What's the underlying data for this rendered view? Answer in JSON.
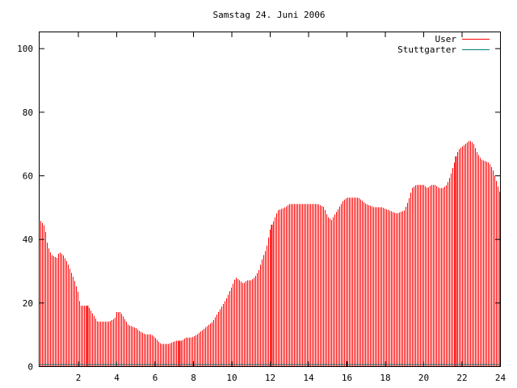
{
  "chart_data": {
    "type": "bar",
    "title": "Samstag 24. Juni 2006",
    "xlabel": "",
    "ylabel": "",
    "xlim": [
      0,
      24
    ],
    "ylim": [
      0,
      105
    ],
    "x_ticks": [
      "2",
      "4",
      "6",
      "8",
      "10",
      "12",
      "14",
      "16",
      "18",
      "20",
      "22",
      "24"
    ],
    "y_ticks": [
      "0",
      "20",
      "40",
      "60",
      "80",
      "100"
    ],
    "grid": false,
    "legend_position": "top-right",
    "series": [
      {
        "name": "User",
        "color": "#ff0000",
        "profile": [
          [
            0.0,
            46
          ],
          [
            0.25,
            44
          ],
          [
            0.4,
            38
          ],
          [
            0.6,
            35
          ],
          [
            0.9,
            34
          ],
          [
            1.0,
            36
          ],
          [
            1.2,
            35
          ],
          [
            1.4,
            33
          ],
          [
            1.6,
            30
          ],
          [
            1.8,
            27
          ],
          [
            2.0,
            23
          ],
          [
            2.1,
            19
          ],
          [
            2.5,
            19
          ],
          [
            2.6,
            18
          ],
          [
            2.8,
            16
          ],
          [
            3.0,
            14
          ],
          [
            3.6,
            14
          ],
          [
            3.9,
            15
          ],
          [
            4.0,
            17
          ],
          [
            4.2,
            17
          ],
          [
            4.4,
            15
          ],
          [
            4.6,
            13
          ],
          [
            5.0,
            12
          ],
          [
            5.2,
            11
          ],
          [
            5.5,
            10
          ],
          [
            5.8,
            10
          ],
          [
            6.0,
            9
          ],
          [
            6.3,
            7
          ],
          [
            6.7,
            7
          ],
          [
            7.1,
            8
          ],
          [
            7.4,
            8
          ],
          [
            7.6,
            9
          ],
          [
            7.9,
            9
          ],
          [
            8.2,
            10
          ],
          [
            8.6,
            12
          ],
          [
            9.0,
            14
          ],
          [
            9.4,
            18
          ],
          [
            9.7,
            21
          ],
          [
            10.0,
            25
          ],
          [
            10.2,
            28
          ],
          [
            10.4,
            27
          ],
          [
            10.6,
            26
          ],
          [
            10.8,
            27
          ],
          [
            11.0,
            27
          ],
          [
            11.2,
            28
          ],
          [
            11.4,
            30
          ],
          [
            11.6,
            34
          ],
          [
            11.8,
            37
          ],
          [
            12.0,
            43
          ],
          [
            12.2,
            46
          ],
          [
            12.4,
            49
          ],
          [
            12.8,
            50
          ],
          [
            13.0,
            51
          ],
          [
            14.0,
            51
          ],
          [
            14.5,
            51
          ],
          [
            14.8,
            50
          ],
          [
            15.0,
            47
          ],
          [
            15.2,
            46
          ],
          [
            15.4,
            48
          ],
          [
            15.6,
            50
          ],
          [
            15.8,
            52
          ],
          [
            16.0,
            53
          ],
          [
            16.6,
            53
          ],
          [
            16.8,
            52
          ],
          [
            17.0,
            51
          ],
          [
            17.4,
            50
          ],
          [
            17.8,
            50
          ],
          [
            18.2,
            49
          ],
          [
            18.6,
            48
          ],
          [
            19.0,
            49
          ],
          [
            19.2,
            52
          ],
          [
            19.4,
            56
          ],
          [
            19.6,
            57
          ],
          [
            20.0,
            57
          ],
          [
            20.2,
            56
          ],
          [
            20.4,
            57
          ],
          [
            20.6,
            57
          ],
          [
            20.8,
            56
          ],
          [
            21.0,
            56
          ],
          [
            21.2,
            57
          ],
          [
            21.4,
            60
          ],
          [
            21.6,
            64
          ],
          [
            21.8,
            68
          ],
          [
            22.0,
            69
          ],
          [
            22.2,
            70
          ],
          [
            22.4,
            71
          ],
          [
            22.6,
            70
          ],
          [
            22.8,
            67
          ],
          [
            23.0,
            65
          ],
          [
            23.4,
            64
          ],
          [
            23.6,
            62
          ],
          [
            23.8,
            58
          ],
          [
            24.0,
            54
          ]
        ],
        "highlight_x": [
          2.5,
          7.3,
          12.1,
          21.7
        ]
      },
      {
        "name": "Stuttgarter",
        "color": "#008080",
        "profile": [
          [
            0.0,
            0
          ],
          [
            24.0,
            0
          ]
        ]
      }
    ]
  }
}
